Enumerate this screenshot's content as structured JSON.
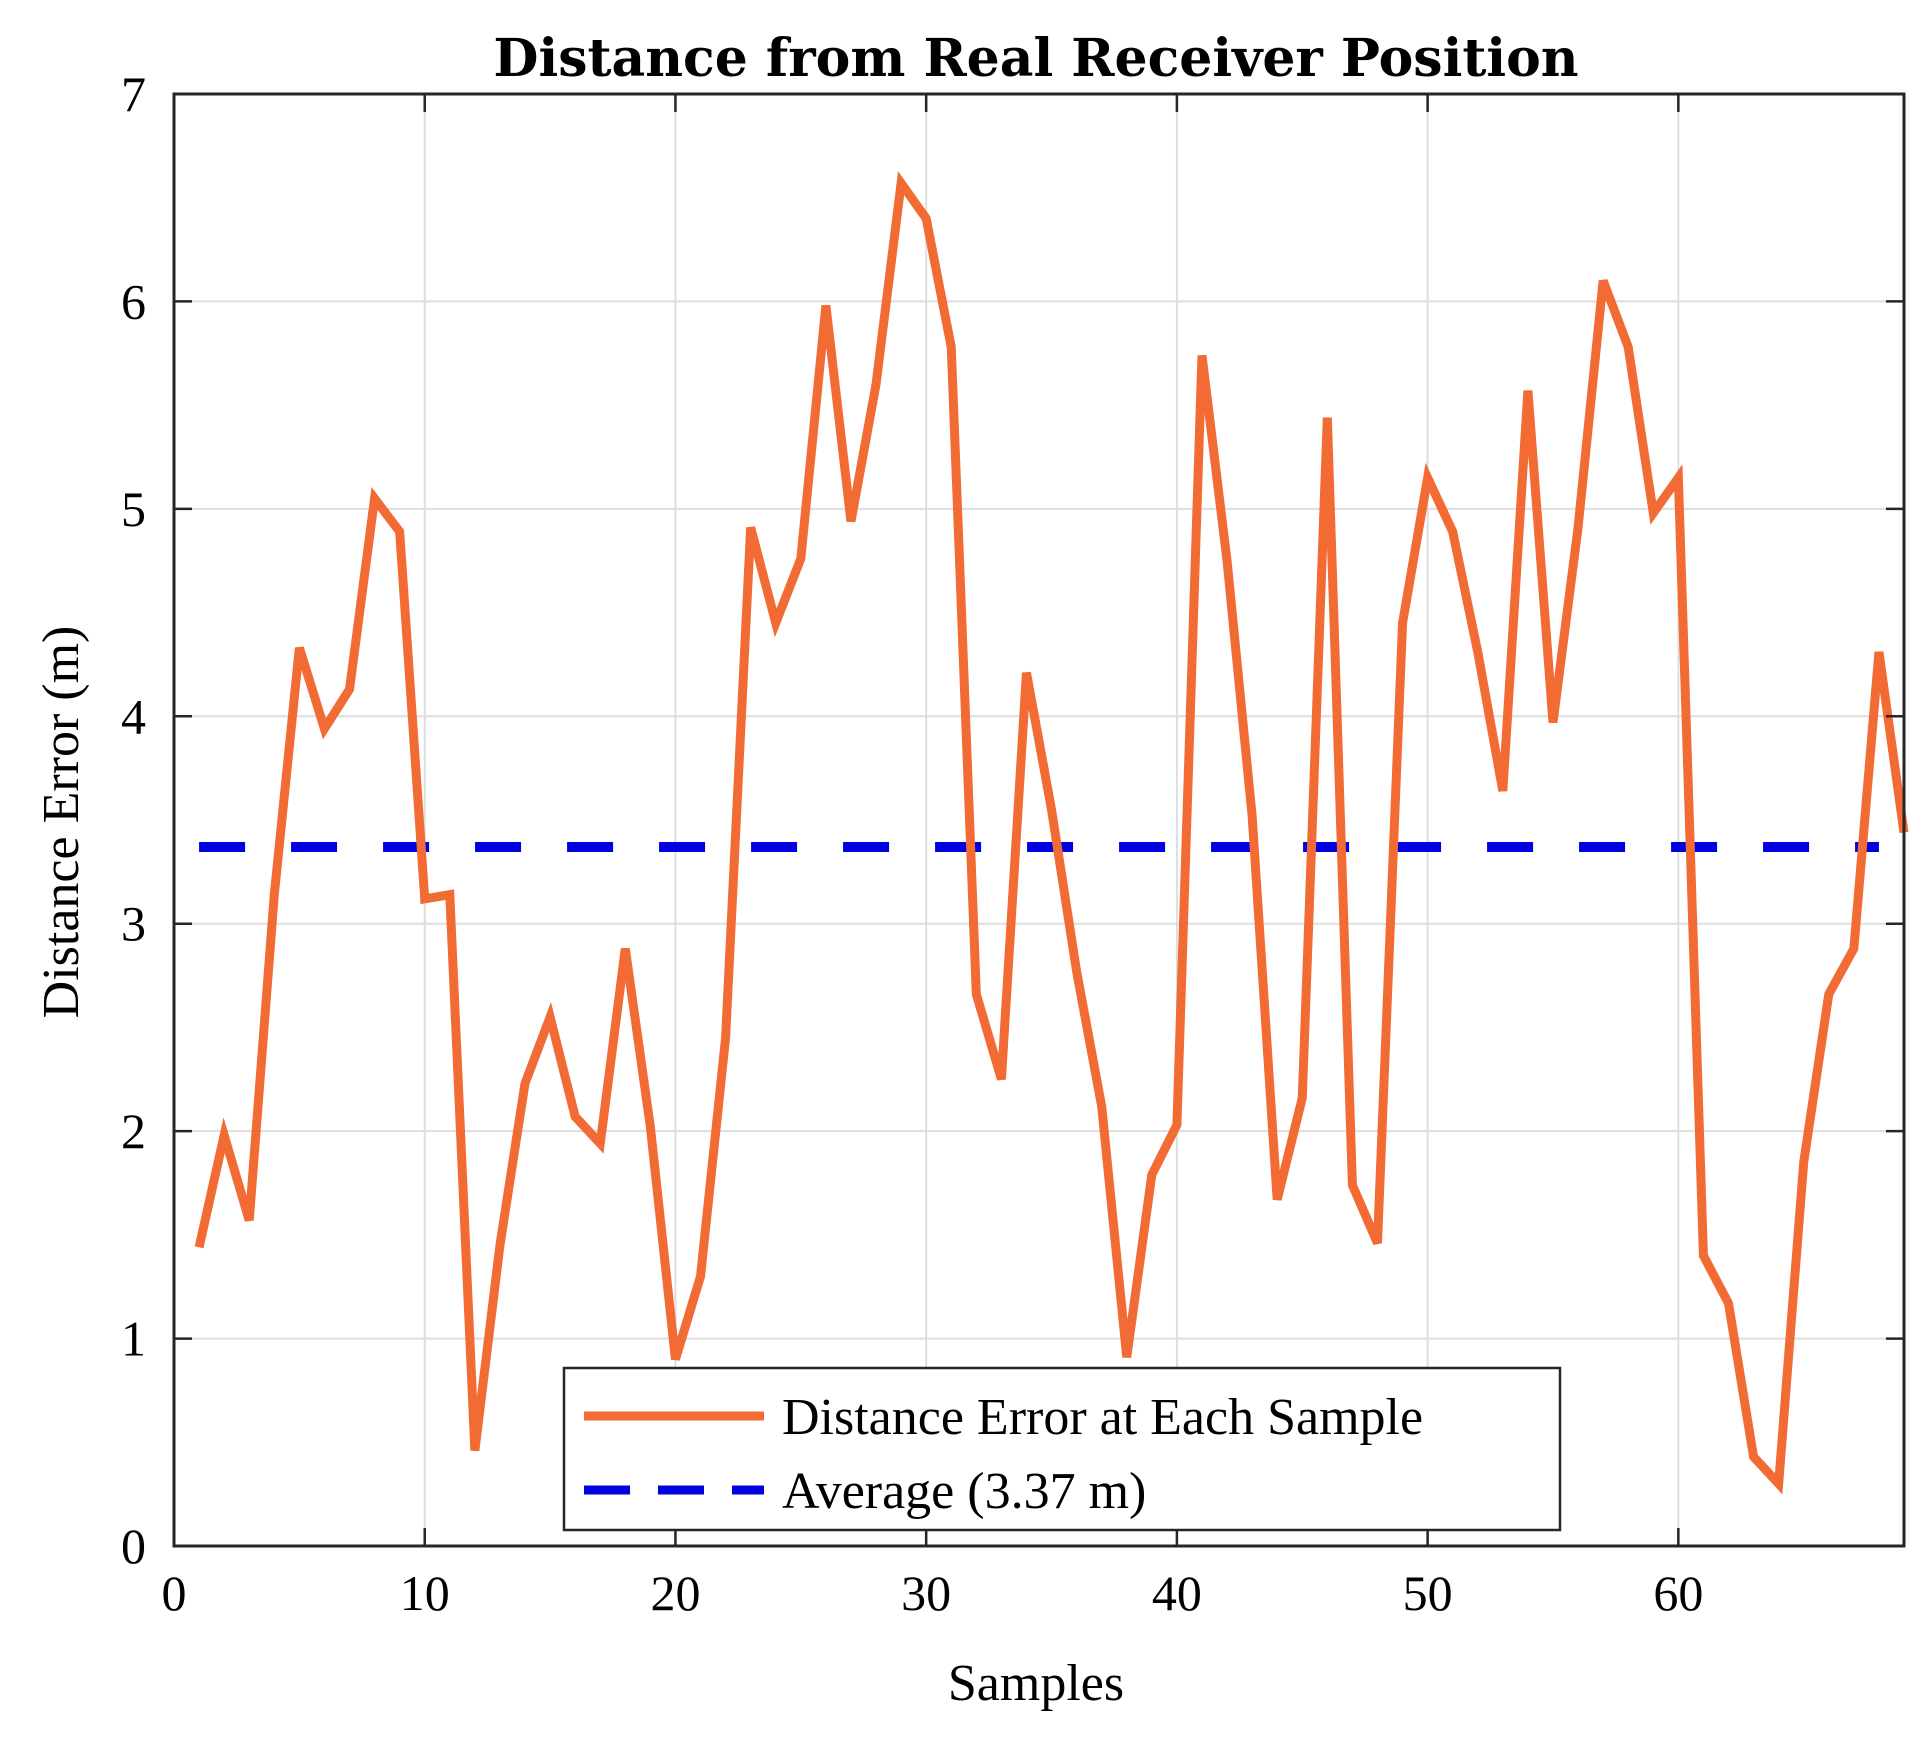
{
  "chart_data": {
    "type": "line",
    "title": "Distance from Real Receiver Position",
    "xlabel": "Samples",
    "ylabel": "Distance Error (m)",
    "xlim": [
      0,
      69
    ],
    "ylim": [
      0,
      7
    ],
    "xticks": [
      0,
      10,
      20,
      30,
      40,
      50,
      60
    ],
    "yticks": [
      0,
      1,
      2,
      3,
      4,
      5,
      6,
      7
    ],
    "grid": true,
    "legend_position": "bottom-center",
    "series": [
      {
        "name": "Distance Error at Each Sample",
        "color": "#f26b35",
        "style": "solid",
        "x": [
          1,
          2,
          3,
          4,
          5,
          6,
          7,
          8,
          9,
          10,
          11,
          12,
          13,
          14,
          15,
          16,
          17,
          18,
          19,
          20,
          21,
          22,
          23,
          24,
          25,
          26,
          27,
          28,
          29,
          30,
          31,
          32,
          33,
          34,
          35,
          36,
          37,
          38,
          39,
          40,
          41,
          42,
          43,
          44,
          45,
          46,
          47,
          48,
          49,
          50,
          51,
          52,
          53,
          54,
          55,
          56,
          57,
          58,
          59,
          60,
          61,
          62,
          63,
          64,
          65,
          66,
          67,
          68,
          69
        ],
        "values": [
          1.44,
          1.98,
          1.57,
          3.14,
          4.33,
          3.94,
          4.13,
          5.05,
          4.89,
          3.12,
          3.14,
          0.46,
          1.45,
          2.23,
          2.55,
          2.07,
          1.94,
          2.88,
          2.02,
          0.9,
          1.3,
          2.45,
          4.91,
          4.45,
          4.76,
          5.98,
          4.94,
          5.6,
          6.57,
          6.4,
          5.78,
          2.66,
          2.25,
          4.21,
          3.55,
          2.77,
          2.12,
          0.91,
          1.79,
          2.03,
          5.74,
          4.75,
          3.52,
          1.67,
          2.16,
          5.44,
          1.74,
          1.46,
          4.45,
          5.15,
          4.89,
          4.31,
          3.64,
          5.57,
          3.97,
          4.91,
          6.1,
          5.78,
          4.98,
          5.15,
          1.4,
          1.17,
          0.43,
          0.3,
          1.85,
          2.66,
          2.88,
          4.31,
          3.44
        ]
      },
      {
        "name": "Average (3.37 m)",
        "color": "#0000e0",
        "style": "dashed",
        "x": [
          1,
          68
        ],
        "values": [
          3.37,
          3.37
        ]
      }
    ]
  }
}
